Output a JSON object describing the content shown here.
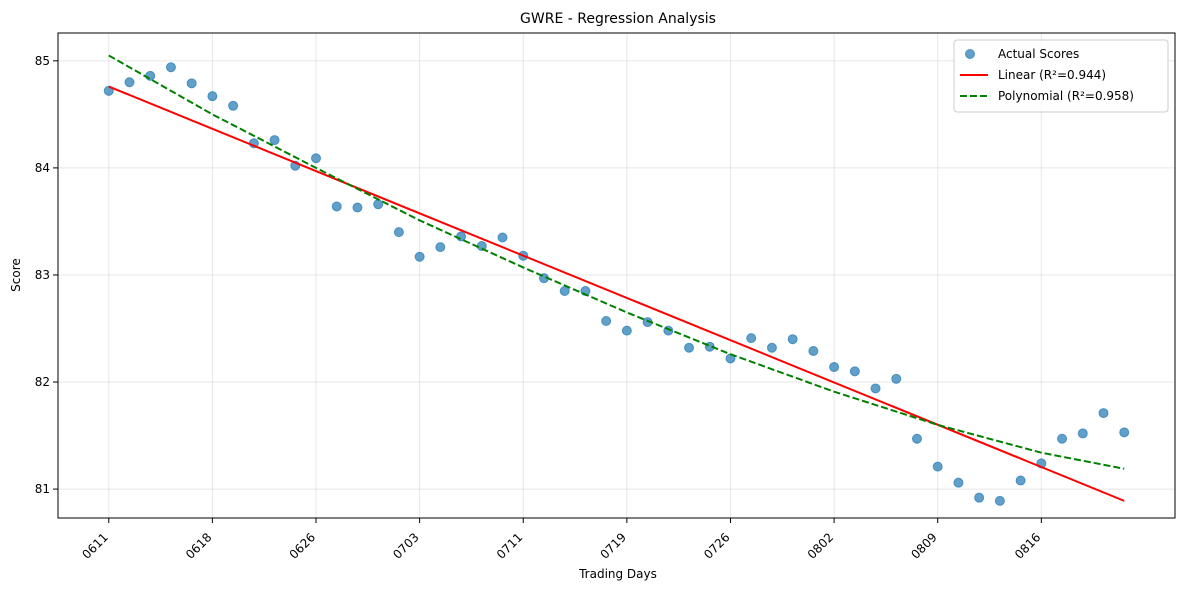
{
  "chart_data": {
    "type": "scatter",
    "title": "GWRE - Regression Analysis",
    "xlabel": "Trading Days",
    "ylabel": "Score",
    "xlim": [
      -2.45,
      51.45
    ],
    "ylim": [
      80.73,
      85.26
    ],
    "grid": true,
    "legend_position": "top-right",
    "x_ticks": [
      {
        "x": 0,
        "label": "0611"
      },
      {
        "x": 5,
        "label": "0618"
      },
      {
        "x": 10,
        "label": "0626"
      },
      {
        "x": 15,
        "label": "0703"
      },
      {
        "x": 20,
        "label": "0711"
      },
      {
        "x": 25,
        "label": "0719"
      },
      {
        "x": 30,
        "label": "0726"
      },
      {
        "x": 35,
        "label": "0802"
      },
      {
        "x": 40,
        "label": "0809"
      },
      {
        "x": 45,
        "label": "0816"
      }
    ],
    "y_ticks": [
      81,
      82,
      83,
      84,
      85
    ],
    "series": [
      {
        "name": "Actual Scores",
        "kind": "scatter",
        "color": "#1f77b4",
        "x": [
          0,
          1,
          2,
          3,
          4,
          5,
          6,
          7,
          8,
          9,
          10,
          11,
          12,
          13,
          14,
          15,
          16,
          17,
          18,
          19,
          20,
          21,
          22,
          23,
          24,
          25,
          26,
          27,
          28,
          29,
          30,
          31,
          32,
          33,
          34,
          35,
          36,
          37,
          38,
          39,
          40,
          41,
          42,
          43,
          44,
          45,
          46,
          47,
          48,
          49
        ],
        "y": [
          84.72,
          84.8,
          84.86,
          84.94,
          84.79,
          84.67,
          84.58,
          84.23,
          84.26,
          84.02,
          84.09,
          83.64,
          83.63,
          83.66,
          83.4,
          83.17,
          83.26,
          83.36,
          83.27,
          83.35,
          83.18,
          82.97,
          82.85,
          82.85,
          82.57,
          82.48,
          82.56,
          82.48,
          82.32,
          82.33,
          82.22,
          82.41,
          82.32,
          82.4,
          82.29,
          82.14,
          82.1,
          81.94,
          82.03,
          81.47,
          81.21,
          81.06,
          80.92,
          80.89,
          81.08,
          81.24,
          81.47,
          81.52,
          81.71,
          81.53
        ]
      },
      {
        "name": "Linear (R²=0.944)",
        "kind": "line",
        "color": "#ff0000",
        "dash": "solid",
        "x": [
          0,
          49
        ],
        "y": [
          84.76,
          80.89
        ]
      },
      {
        "name": "Polynomial (R²=0.958)",
        "kind": "line",
        "color": "#008000",
        "dash": "dashed",
        "x": [
          0,
          5,
          10,
          15,
          20,
          25,
          30,
          35,
          40,
          45,
          49
        ],
        "y": [
          85.05,
          84.5,
          84.0,
          83.51,
          83.07,
          82.65,
          82.26,
          81.91,
          81.6,
          81.34,
          81.19
        ]
      }
    ]
  }
}
